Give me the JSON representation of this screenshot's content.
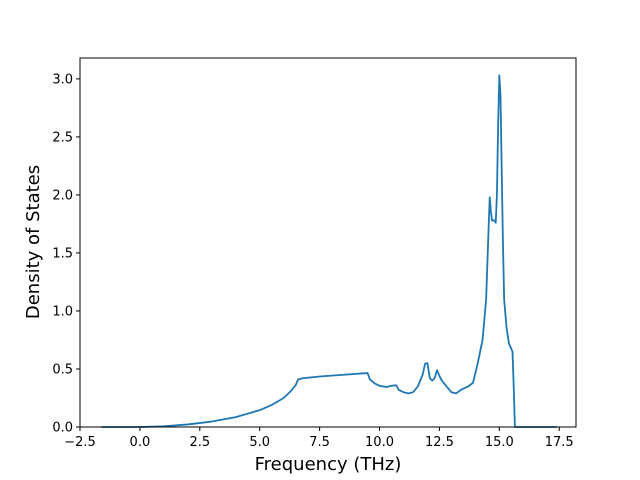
{
  "chart_data": {
    "type": "line",
    "title": "",
    "xlabel": "Frequency (THz)",
    "ylabel": "Density of States",
    "xlim": [
      -2.5,
      18.2
    ],
    "ylim": [
      0.0,
      3.18
    ],
    "grid": false,
    "legend": "none",
    "xticks": [
      -2.5,
      0.0,
      2.5,
      5.0,
      7.5,
      10.0,
      12.5,
      15.0,
      17.5
    ],
    "xtick_labels": [
      "−2.5",
      "0.0",
      "2.5",
      "5.0",
      "7.5",
      "10.0",
      "12.5",
      "15.0",
      "17.5"
    ],
    "yticks": [
      0.0,
      0.5,
      1.0,
      1.5,
      2.0,
      2.5,
      3.0
    ],
    "ytick_labels": [
      "0.0",
      "0.5",
      "1.0",
      "1.5",
      "2.0",
      "2.5",
      "3.0"
    ],
    "series": [
      {
        "color": "#1f77b4",
        "x": [
          -1.6,
          0.0,
          1.0,
          2.0,
          3.0,
          4.0,
          5.0,
          5.5,
          6.0,
          6.3,
          6.5,
          6.6,
          6.8,
          7.5,
          8.5,
          9.5,
          9.6,
          9.8,
          10.0,
          10.3,
          10.5,
          10.7,
          10.8,
          11.0,
          11.2,
          11.4,
          11.6,
          11.8,
          11.9,
          12.0,
          12.1,
          12.2,
          12.3,
          12.4,
          12.5,
          12.6,
          12.8,
          13.0,
          13.2,
          13.4,
          13.7,
          13.9,
          14.1,
          14.3,
          14.45,
          14.55,
          14.6,
          14.65,
          14.7,
          14.8,
          14.85,
          14.9,
          14.95,
          15.0,
          15.05,
          15.1,
          15.15,
          15.2,
          15.3,
          15.4,
          15.55,
          15.6,
          15.65,
          15.7,
          16.0,
          17.4
        ],
        "y": [
          0.0,
          0.0,
          0.006,
          0.022,
          0.047,
          0.085,
          0.145,
          0.19,
          0.25,
          0.31,
          0.36,
          0.41,
          0.42,
          0.435,
          0.45,
          0.465,
          0.41,
          0.375,
          0.355,
          0.345,
          0.355,
          0.36,
          0.32,
          0.3,
          0.29,
          0.3,
          0.35,
          0.45,
          0.545,
          0.55,
          0.42,
          0.4,
          0.42,
          0.49,
          0.44,
          0.4,
          0.35,
          0.3,
          0.29,
          0.32,
          0.35,
          0.38,
          0.55,
          0.75,
          1.1,
          1.7,
          1.98,
          1.85,
          1.78,
          1.78,
          1.76,
          2.0,
          2.6,
          3.03,
          2.85,
          2.2,
          1.6,
          1.1,
          0.86,
          0.72,
          0.65,
          0.35,
          0.0,
          0.0,
          0.0,
          0.0
        ]
      }
    ]
  }
}
